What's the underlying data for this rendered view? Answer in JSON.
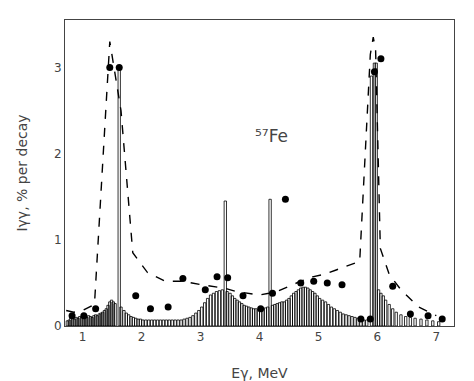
{
  "chart_data": {
    "type": "bar",
    "xlabel": "Eγ, MeV",
    "ylabel": "Iγγ, % per decay",
    "xlim": [
      0.7,
      7.3
    ],
    "ylim": [
      0.0,
      3.55
    ],
    "xticks": [
      1,
      2,
      3,
      4,
      5,
      6,
      7
    ],
    "yticks": [
      0,
      1,
      2,
      3
    ],
    "grid": false,
    "annotations": [
      {
        "text": "⁵⁷Fe",
        "x": 4.2,
        "y": 2.2
      }
    ],
    "series": [
      {
        "type": "bar",
        "color": "#000000",
        "x": [
          0.72,
          0.75,
          0.78,
          0.81,
          0.84,
          0.87,
          0.9,
          0.93,
          0.96,
          0.99,
          1.02,
          1.05,
          1.08,
          1.11,
          1.14,
          1.17,
          1.2,
          1.23,
          1.26,
          1.29,
          1.32,
          1.35,
          1.38,
          1.41,
          1.44,
          1.47,
          1.5,
          1.53,
          1.6,
          1.63,
          1.68,
          1.72,
          1.76,
          1.8,
          1.84,
          1.88,
          1.92,
          1.96,
          2.0,
          2.05,
          2.1,
          2.15,
          2.2,
          2.25,
          2.3,
          2.35,
          2.4,
          2.45,
          2.5,
          2.55,
          2.6,
          2.65,
          2.7,
          2.75,
          2.8,
          2.85,
          2.9,
          2.95,
          3.0,
          3.05,
          3.1,
          3.15,
          3.2,
          3.25,
          3.3,
          3.35,
          3.4,
          3.43,
          3.48,
          3.52,
          3.56,
          3.6,
          3.64,
          3.68,
          3.72,
          3.76,
          3.8,
          3.84,
          3.88,
          3.92,
          3.96,
          4.0,
          4.04,
          4.08,
          4.12,
          4.16,
          4.2,
          4.24,
          4.28,
          4.32,
          4.36,
          4.4,
          4.44,
          4.48,
          4.52,
          4.56,
          4.6,
          4.64,
          4.68,
          4.72,
          4.76,
          4.8,
          4.84,
          4.88,
          4.92,
          4.96,
          5.0,
          5.05,
          5.1,
          5.15,
          5.2,
          5.25,
          5.3,
          5.35,
          5.4,
          5.45,
          5.5,
          5.55,
          5.6,
          5.65,
          5.7,
          5.75,
          5.8,
          5.88,
          5.93,
          5.96,
          6.0,
          6.04,
          6.08,
          6.12,
          6.18,
          6.24,
          6.3,
          6.38,
          6.46,
          6.54,
          6.62,
          6.72,
          6.82,
          6.92,
          7.02
        ],
        "values": [
          0.06,
          0.07,
          0.1,
          0.09,
          0.08,
          0.1,
          0.09,
          0.11,
          0.1,
          0.09,
          0.11,
          0.1,
          0.12,
          0.11,
          0.1,
          0.12,
          0.13,
          0.12,
          0.14,
          0.15,
          0.16,
          0.18,
          0.2,
          0.24,
          0.28,
          0.3,
          0.28,
          0.26,
          3.0,
          0.22,
          0.18,
          0.15,
          0.13,
          0.11,
          0.1,
          0.09,
          0.08,
          0.08,
          0.07,
          0.07,
          0.07,
          0.07,
          0.07,
          0.07,
          0.07,
          0.07,
          0.07,
          0.07,
          0.07,
          0.07,
          0.07,
          0.07,
          0.08,
          0.09,
          0.1,
          0.12,
          0.15,
          0.18,
          0.22,
          0.27,
          0.32,
          0.36,
          0.38,
          0.4,
          0.41,
          0.42,
          1.45,
          0.4,
          0.38,
          0.35,
          0.32,
          0.3,
          0.28,
          0.26,
          0.24,
          0.23,
          0.22,
          0.21,
          0.2,
          0.2,
          0.19,
          0.19,
          0.2,
          0.21,
          0.22,
          1.47,
          0.24,
          0.25,
          0.26,
          0.27,
          0.28,
          0.28,
          0.3,
          0.32,
          0.35,
          0.38,
          0.4,
          0.42,
          0.44,
          0.45,
          0.45,
          0.44,
          0.42,
          0.4,
          0.38,
          0.35,
          0.32,
          0.3,
          0.28,
          0.25,
          0.22,
          0.2,
          0.18,
          0.16,
          0.14,
          0.13,
          0.12,
          0.11,
          0.1,
          0.09,
          0.08,
          0.07,
          0.07,
          2.9,
          3.05,
          3.05,
          0.42,
          0.38,
          0.35,
          0.3,
          0.25,
          0.2,
          0.16,
          0.13,
          0.11,
          0.1,
          0.09,
          0.08,
          0.07,
          0.06,
          0.05
        ]
      },
      {
        "type": "line",
        "color": "#000000",
        "line_style": "dashed",
        "x": [
          0.72,
          0.85,
          1.0,
          1.2,
          1.46,
          1.65,
          1.85,
          2.1,
          2.4,
          2.7,
          3.0,
          3.2,
          3.4,
          3.6,
          3.8,
          4.0,
          4.16,
          4.3,
          4.5,
          4.7,
          4.9,
          5.1,
          5.3,
          5.5,
          5.7,
          5.88,
          5.93,
          5.97,
          6.05,
          6.2,
          6.4,
          6.7,
          7.0
        ],
        "values": [
          0.18,
          0.16,
          0.18,
          0.25,
          3.3,
          2.5,
          0.85,
          0.62,
          0.52,
          0.52,
          0.48,
          0.46,
          0.44,
          0.4,
          0.38,
          0.36,
          0.38,
          0.4,
          0.46,
          0.52,
          0.57,
          0.6,
          0.65,
          0.7,
          0.75,
          3.15,
          3.35,
          3.2,
          0.9,
          0.6,
          0.42,
          0.22,
          0.12
        ]
      },
      {
        "type": "scatter",
        "color": "#000000",
        "marker": "circle",
        "x": [
          0.82,
          1.02,
          1.22,
          1.46,
          1.62,
          1.9,
          2.15,
          2.45,
          2.7,
          3.08,
          3.28,
          3.46,
          3.72,
          4.02,
          4.22,
          4.44,
          4.7,
          4.92,
          5.15,
          5.4,
          5.72,
          5.88,
          5.95,
          6.06,
          6.26,
          6.56,
          6.86,
          7.1
        ],
        "values": [
          0.12,
          0.12,
          0.2,
          3.0,
          3.0,
          0.35,
          0.2,
          0.22,
          0.55,
          0.42,
          0.57,
          0.56,
          0.35,
          0.2,
          0.38,
          1.47,
          0.5,
          0.52,
          0.5,
          0.48,
          0.08,
          0.08,
          2.95,
          3.1,
          0.46,
          0.14,
          0.12,
          0.08
        ]
      }
    ]
  }
}
